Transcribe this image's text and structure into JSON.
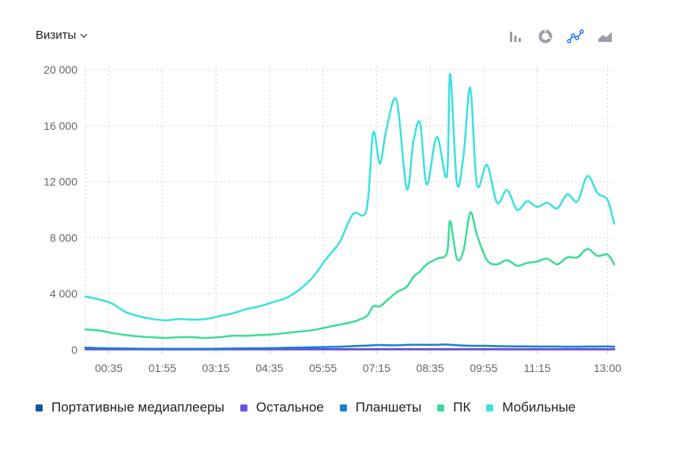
{
  "header": {
    "metric_label": "Визиты",
    "metric_icon": "chevron-down-icon"
  },
  "toolbar": {
    "tools": [
      {
        "name": "bar-chart-icon",
        "active": false
      },
      {
        "name": "pie-chart-icon",
        "active": false
      },
      {
        "name": "line-chart-icon",
        "active": true
      },
      {
        "name": "area-chart-icon",
        "active": false
      }
    ],
    "colors": {
      "inactive": "#9aa0a6",
      "active": "#1a73e8"
    }
  },
  "chart_data": {
    "type": "line",
    "grid": true,
    "ylim": [
      0,
      20000
    ],
    "yticks": [
      {
        "value": 0,
        "label": "0"
      },
      {
        "value": 4000,
        "label": "4 000"
      },
      {
        "value": 8000,
        "label": "8 000"
      },
      {
        "value": 12000,
        "label": "12 000"
      },
      {
        "value": 16000,
        "label": "16 000"
      },
      {
        "value": 20000,
        "label": "20 000"
      }
    ],
    "xlim": [
      "00:00",
      "13:10"
    ],
    "xticks": [
      "00:35",
      "01:55",
      "03:15",
      "04:35",
      "05:55",
      "07:15",
      "08:35",
      "09:55",
      "11:15",
      "13:00"
    ],
    "x": [
      "00:00",
      "00:20",
      "00:40",
      "01:00",
      "01:20",
      "01:40",
      "02:00",
      "02:20",
      "02:40",
      "03:00",
      "03:20",
      "03:40",
      "04:00",
      "04:20",
      "04:40",
      "05:00",
      "05:20",
      "05:40",
      "06:00",
      "06:20",
      "06:40",
      "07:00",
      "07:10",
      "07:20",
      "07:30",
      "07:45",
      "08:00",
      "08:10",
      "08:20",
      "08:30",
      "08:45",
      "09:00",
      "09:05",
      "09:15",
      "09:25",
      "09:35",
      "09:45",
      "10:00",
      "10:15",
      "10:30",
      "10:45",
      "11:00",
      "11:15",
      "11:30",
      "11:45",
      "12:00",
      "12:15",
      "12:30",
      "12:45",
      "13:00",
      "13:10"
    ],
    "series": [
      {
        "name": "Портативные медиаплееры",
        "color": "#1a4fa8",
        "values": [
          80,
          70,
          60,
          50,
          50,
          40,
          40,
          40,
          40,
          40,
          40,
          40,
          40,
          40,
          40,
          40,
          40,
          40,
          40,
          40,
          40,
          40,
          40,
          40,
          40,
          40,
          40,
          40,
          40,
          40,
          40,
          40,
          40,
          40,
          40,
          40,
          40,
          40,
          40,
          40,
          40,
          40,
          40,
          40,
          40,
          40,
          40,
          40,
          40,
          40,
          40
        ]
      },
      {
        "name": "Остальное",
        "color": "#6a4fe0",
        "values": [
          30,
          30,
          30,
          30,
          30,
          30,
          30,
          30,
          30,
          30,
          30,
          30,
          30,
          30,
          30,
          30,
          30,
          30,
          30,
          30,
          30,
          30,
          30,
          30,
          30,
          30,
          30,
          30,
          30,
          30,
          30,
          30,
          30,
          30,
          30,
          30,
          30,
          30,
          30,
          30,
          30,
          30,
          30,
          30,
          30,
          30,
          30,
          30,
          30,
          30,
          30
        ]
      },
      {
        "name": "Планшеты",
        "color": "#1c7ed6",
        "values": [
          150,
          120,
          100,
          90,
          80,
          70,
          70,
          70,
          70,
          70,
          80,
          90,
          100,
          110,
          120,
          140,
          160,
          180,
          200,
          220,
          260,
          300,
          320,
          340,
          330,
          320,
          350,
          360,
          360,
          350,
          360,
          380,
          360,
          330,
          300,
          290,
          280,
          280,
          260,
          250,
          240,
          240,
          230,
          230,
          230,
          220,
          220,
          230,
          230,
          240,
          220
        ]
      },
      {
        "name": "ПК",
        "color": "#3ddc97",
        "values": [
          1450,
          1380,
          1200,
          1050,
          950,
          900,
          850,
          900,
          900,
          850,
          900,
          1000,
          1000,
          1050,
          1100,
          1200,
          1300,
          1400,
          1600,
          1800,
          2000,
          2400,
          3100,
          3100,
          3500,
          4100,
          4500,
          5200,
          5600,
          6100,
          6500,
          6900,
          9200,
          6500,
          7100,
          9800,
          8200,
          6400,
          6100,
          6400,
          6000,
          6200,
          6300,
          6500,
          6100,
          6600,
          6600,
          7200,
          6700,
          6800,
          6100
        ]
      },
      {
        "name": "Мобильные",
        "color": "#3ee0e0",
        "values": [
          3800,
          3600,
          3300,
          2700,
          2400,
          2200,
          2100,
          2200,
          2150,
          2200,
          2400,
          2600,
          2900,
          3100,
          3400,
          3700,
          4300,
          5200,
          6500,
          7700,
          9700,
          10000,
          15500,
          13300,
          15800,
          17800,
          11500,
          14800,
          16200,
          11800,
          15200,
          12400,
          19700,
          11900,
          13900,
          18700,
          11800,
          13200,
          10500,
          11400,
          10000,
          10600,
          10200,
          10500,
          10100,
          11100,
          10600,
          12400,
          11200,
          10700,
          9000
        ]
      }
    ]
  },
  "legend": {
    "items": [
      {
        "label": "Портативные медиаплееры",
        "color": "#1a4fa8"
      },
      {
        "label": "Остальное",
        "color": "#6a4fe0"
      },
      {
        "label": "Планшеты",
        "color": "#1c7ed6"
      },
      {
        "label": "ПК",
        "color": "#3ddc97"
      },
      {
        "label": "Мобильные",
        "color": "#3ee0e0"
      }
    ]
  }
}
